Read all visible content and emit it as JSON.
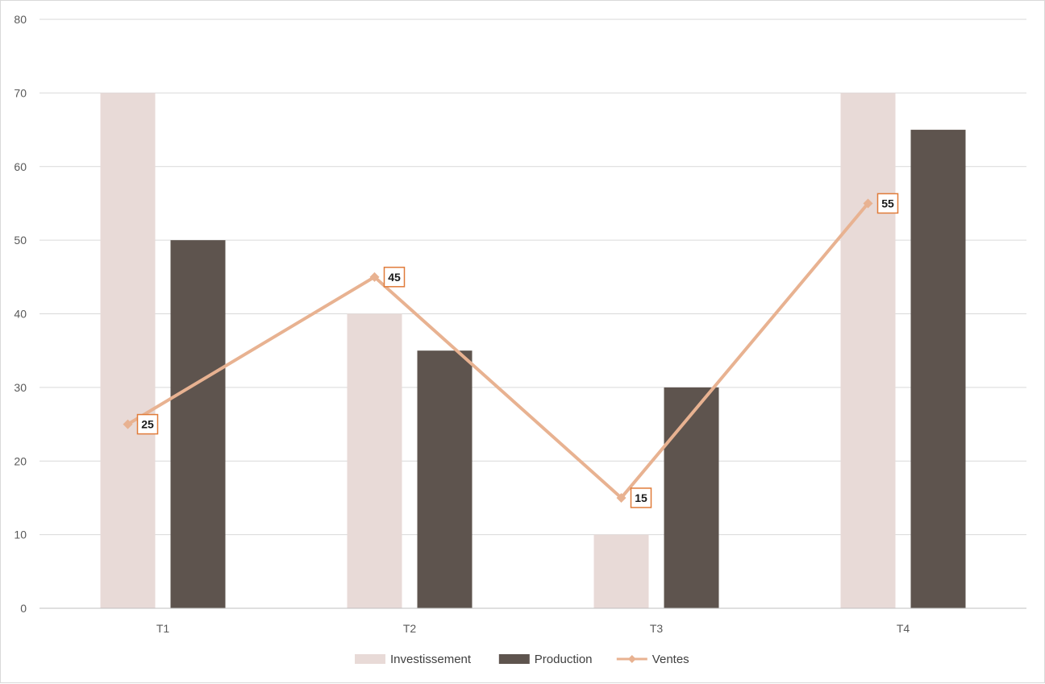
{
  "chart_data": {
    "type": "bar",
    "categories": [
      "T1",
      "T2",
      "T3",
      "T4"
    ],
    "series": [
      {
        "name": "Investissement",
        "type": "bar",
        "color": "#e8dad7",
        "values": [
          70,
          40,
          10,
          70
        ]
      },
      {
        "name": "Production",
        "type": "bar",
        "color": "#5e544e",
        "values": [
          50,
          35,
          30,
          65
        ]
      },
      {
        "name": "Ventes",
        "type": "line",
        "color": "#e8b291",
        "label_border": "#e07b39",
        "values": [
          25,
          45,
          15,
          55
        ],
        "data_labels": [
          "25",
          "45",
          "15",
          "55"
        ]
      }
    ],
    "ylim": [
      0,
      80
    ],
    "yticks": [
      "0",
      "10",
      "20",
      "30",
      "40",
      "50",
      "60",
      "70",
      "80"
    ],
    "grid": true,
    "legend_position": "bottom"
  }
}
